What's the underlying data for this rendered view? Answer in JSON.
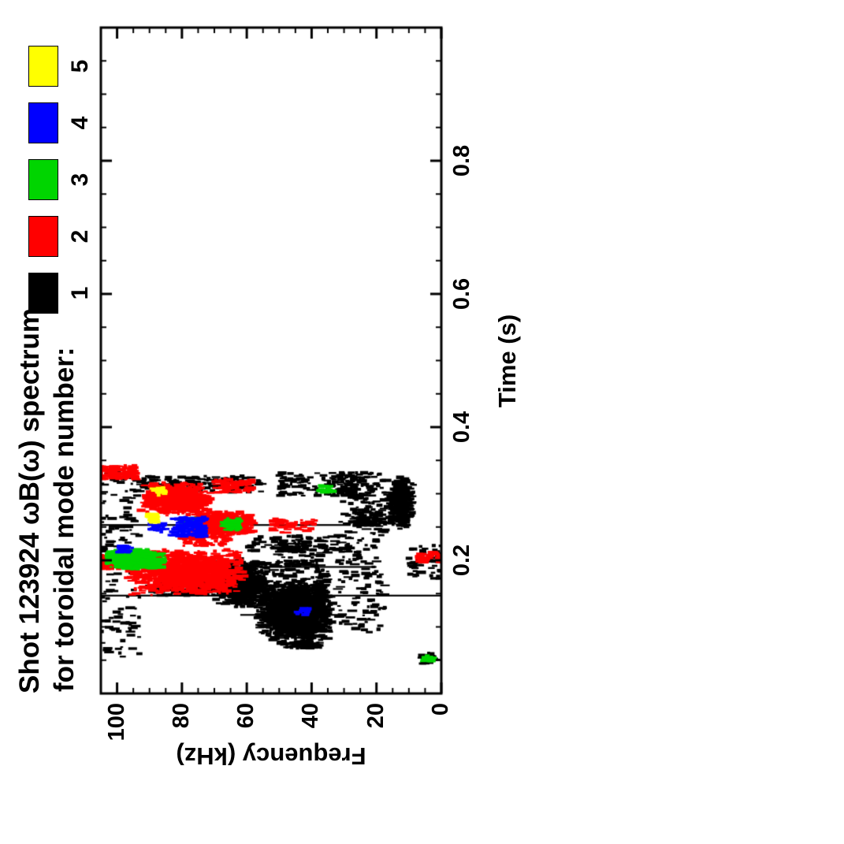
{
  "page": {
    "background": "#ffffff"
  },
  "title": {
    "line1": "Shot 123924 ωB(ω) spectrum",
    "line2": "for toroidal mode number:"
  },
  "legend": {
    "items": [
      {
        "label": "1",
        "color": "#000000"
      },
      {
        "label": "2",
        "color": "#ff0000"
      },
      {
        "label": "3",
        "color": "#00d500"
      },
      {
        "label": "4",
        "color": "#0000ff"
      },
      {
        "label": "5",
        "color": "#ffff00"
      }
    ]
  },
  "axes": {
    "x_label": "Time (s)",
    "y_label": "Frequency (kHz)"
  },
  "chart_data": {
    "type": "scatter",
    "title": "Shot 123924 ωB(ω) spectrum for toroidal mode number:",
    "xlabel": "Time (s)",
    "ylabel": "Frequency (kHz)",
    "xlim": [
      0,
      1.0
    ],
    "ylim": [
      0,
      105
    ],
    "x_major_ticks": [
      0.2,
      0.4,
      0.6,
      0.8
    ],
    "x_tick_labels": [
      "0.2",
      "0.4",
      "0.6",
      "0.8"
    ],
    "x_minor_step": 0.05,
    "y_major_ticks": [
      0,
      20,
      40,
      60,
      80,
      100
    ],
    "y_tick_labels": [
      "0",
      "20",
      "40",
      "60",
      "80",
      "100"
    ],
    "y_minor_step": 5,
    "grid": false,
    "legend_position": "top-right",
    "orientation": "whole figure rotated 90 degrees counterclockwise",
    "series": [
      {
        "name": "1",
        "color": "#000000",
        "clusters": [
          {
            "t": [
              0.075,
              0.165
            ],
            "f": [
              33,
              57
            ],
            "n": 1500,
            "bias": 2
          },
          {
            "t": [
              0.125,
              0.2
            ],
            "f": [
              53,
              70
            ],
            "n": 750,
            "bias": 2
          },
          {
            "t": [
              0.1,
              0.22
            ],
            "f": [
              35,
              52
            ],
            "n": 300,
            "bias": 1
          },
          {
            "t": [
              0.09,
              0.33
            ],
            "f": [
              17,
              32
            ],
            "n": 210,
            "bias": 1
          },
          {
            "t": [
              0.245,
              0.325
            ],
            "f": [
              8,
              17
            ],
            "n": 330,
            "bias": 2
          },
          {
            "t": [
              0.05,
              0.335
            ],
            "f": [
              93,
              106
            ],
            "n": 140,
            "bias": 1
          },
          {
            "t": [
              0.295,
              0.33
            ],
            "f": [
              20,
              50
            ],
            "n": 150,
            "bias": 1
          },
          {
            "t": [
              0.3,
              0.325
            ],
            "f": [
              55,
              95
            ],
            "n": 160,
            "bias": 1
          },
          {
            "t": [
              0.21,
              0.235
            ],
            "f": [
              28,
              60
            ],
            "n": 90,
            "bias": 1
          },
          {
            "t": [
              0.04,
              0.06
            ],
            "f": [
              1,
              7
            ],
            "n": 45,
            "bias": 2
          },
          {
            "t": [
              0.25,
              0.275
            ],
            "f": [
              18,
              27
            ],
            "n": 80,
            "bias": 1
          },
          {
            "t": [
              0.145,
              0.165
            ],
            "f": [
              70,
              90
            ],
            "n": 110,
            "bias": 1
          },
          {
            "t": [
              0.17,
              0.22
            ],
            "f": [
              0,
              10
            ],
            "n": 50,
            "bias": 1
          },
          {
            "t": [
              0.065,
              0.078
            ],
            "f": [
              35,
              50
            ],
            "n": 60,
            "bias": 2
          }
        ],
        "lines": [
          {
            "t": 0.147,
            "f": [
              0,
              106
            ]
          },
          {
            "t": 0.19,
            "f": [
              20,
              106
            ]
          },
          {
            "t": 0.253,
            "f": [
              28,
              106
            ]
          },
          {
            "t": 0.118,
            "f": [
              30,
              62
            ]
          }
        ]
      },
      {
        "name": "2",
        "color": "#ff0000",
        "clusters": [
          {
            "t": [
              0.145,
              0.215
            ],
            "f": [
              60,
              97
            ],
            "n": 1250,
            "bias": 2
          },
          {
            "t": [
              0.235,
              0.272
            ],
            "f": [
              57,
              77
            ],
            "n": 700,
            "bias": 2
          },
          {
            "t": [
              0.265,
              0.315
            ],
            "f": [
              71,
              93
            ],
            "n": 700,
            "bias": 2
          },
          {
            "t": [
              0.32,
              0.34
            ],
            "f": [
              94,
              106
            ],
            "n": 110,
            "bias": 1
          },
          {
            "t": [
              0.185,
              0.205
            ],
            "f": [
              99,
              106
            ],
            "n": 70,
            "bias": 1
          },
          {
            "t": [
              0.195,
              0.21
            ],
            "f": [
              0,
              7
            ],
            "n": 45,
            "bias": 1
          },
          {
            "t": [
              0.3,
              0.32
            ],
            "f": [
              58,
              70
            ],
            "n": 90,
            "bias": 1
          },
          {
            "t": [
              0.22,
              0.235
            ],
            "f": [
              65,
              80
            ],
            "n": 70,
            "bias": 1
          },
          {
            "t": [
              0.24,
              0.26
            ],
            "f": [
              38,
              52
            ],
            "n": 45,
            "bias": 1
          }
        ],
        "lines": []
      },
      {
        "name": "3",
        "color": "#00d500",
        "clusters": [
          {
            "t": [
              0.183,
              0.215
            ],
            "f": [
              85,
              104
            ],
            "n": 430,
            "bias": 2
          },
          {
            "t": [
              0.243,
              0.26
            ],
            "f": [
              62,
              67
            ],
            "n": 55,
            "bias": 1
          },
          {
            "t": [
              0.25,
              0.262
            ],
            "f": [
              76,
              80
            ],
            "n": 28,
            "bias": 1
          },
          {
            "t": [
              0.3,
              0.312
            ],
            "f": [
              33,
              38
            ],
            "n": 22,
            "bias": 1
          },
          {
            "t": [
              0.045,
              0.055
            ],
            "f": [
              2,
              6
            ],
            "n": 14,
            "bias": 1
          }
        ],
        "lines": []
      },
      {
        "name": "4",
        "color": "#0000ff",
        "clusters": [
          {
            "t": [
              0.233,
              0.262
            ],
            "f": [
              73,
              83
            ],
            "n": 110,
            "bias": 1
          },
          {
            "t": [
              0.24,
              0.252
            ],
            "f": [
              85,
              90
            ],
            "n": 24,
            "bias": 1
          },
          {
            "t": [
              0.115,
              0.127
            ],
            "f": [
              40,
              45
            ],
            "n": 16,
            "bias": 1
          },
          {
            "t": [
              0.21,
              0.22
            ],
            "f": [
              95,
              100
            ],
            "n": 14,
            "bias": 1
          }
        ],
        "lines": []
      },
      {
        "name": "5",
        "color": "#ffff00",
        "clusters": [
          {
            "t": [
              0.255,
              0.268
            ],
            "f": [
              87,
              91
            ],
            "n": 26,
            "bias": 1
          },
          {
            "t": [
              0.295,
              0.308
            ],
            "f": [
              85,
              89
            ],
            "n": 14,
            "bias": 1
          }
        ],
        "lines": []
      }
    ]
  }
}
